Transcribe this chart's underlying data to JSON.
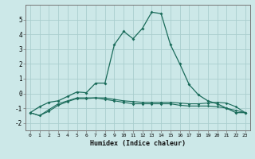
{
  "xlabel": "Humidex (Indice chaleur)",
  "x": [
    0,
    1,
    2,
    3,
    4,
    5,
    6,
    7,
    8,
    9,
    10,
    11,
    12,
    13,
    14,
    15,
    16,
    17,
    18,
    19,
    20,
    21,
    22,
    23
  ],
  "line1": [
    -1.3,
    -0.9,
    -0.6,
    -0.5,
    -0.2,
    0.1,
    0.05,
    0.7,
    0.7,
    3.3,
    4.2,
    3.7,
    4.4,
    5.5,
    5.4,
    3.3,
    2.0,
    0.6,
    -0.1,
    -0.5,
    -0.7,
    -1.0,
    -1.3,
    -1.3
  ],
  "line2": [
    -1.3,
    -1.5,
    -1.1,
    -0.7,
    -0.5,
    -0.3,
    -0.3,
    -0.3,
    -0.4,
    -0.5,
    -0.6,
    -0.7,
    -0.7,
    -0.7,
    -0.7,
    -0.7,
    -0.8,
    -0.85,
    -0.85,
    -0.85,
    -0.9,
    -1.0,
    -1.15,
    -1.3
  ],
  "line3": [
    -1.3,
    -1.5,
    -1.2,
    -0.8,
    -0.55,
    -0.35,
    -0.35,
    -0.3,
    -0.3,
    -0.4,
    -0.5,
    -0.55,
    -0.6,
    -0.6,
    -0.6,
    -0.6,
    -0.65,
    -0.7,
    -0.7,
    -0.65,
    -0.6,
    -0.65,
    -0.9,
    -1.3
  ],
  "line_color": "#1a6b5a",
  "bg_color": "#cce8e8",
  "grid_color": "#aacece",
  "xlim": [
    -0.5,
    23.5
  ],
  "ylim": [
    -2.5,
    6.0
  ],
  "yticks": [
    -2,
    -1,
    0,
    1,
    2,
    3,
    4,
    5
  ],
  "xtick_labels": [
    "0",
    "1",
    "2",
    "3",
    "4",
    "5",
    "6",
    "7",
    "8",
    "9",
    "10",
    "11",
    "12",
    "13",
    "14",
    "15",
    "16",
    "17",
    "18",
    "19",
    "20",
    "21",
    "22",
    "23"
  ]
}
